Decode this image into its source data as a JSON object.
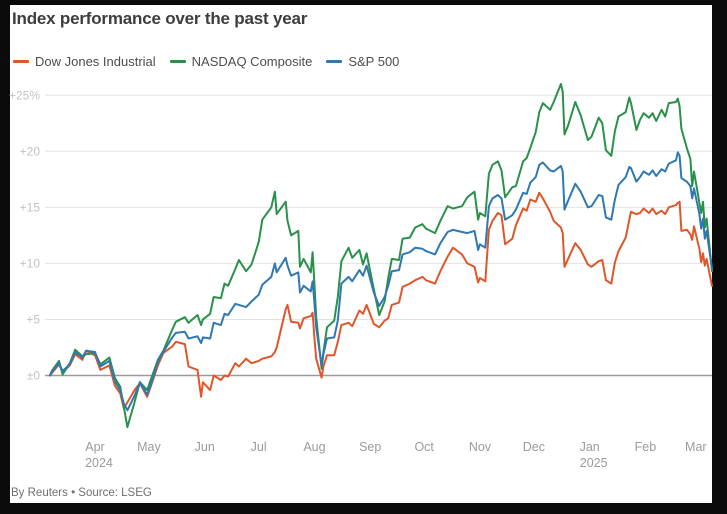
{
  "page": {
    "background": "#0a0a0a",
    "card_background": "#ffffff"
  },
  "footer": {
    "attribution": "By Reuters • Source: LSEG"
  },
  "chart_data": {
    "type": "line",
    "title": "Index performance over the past year",
    "legend_position": "top-left",
    "grid": {
      "grid_on": true,
      "grid_line_color": "#e3e3e3",
      "zero_line_color": "#9a9a9a",
      "y_label_color": "#c2c2c2",
      "x_label_color": "#9b9b9b"
    },
    "ylim": [
      -6,
      27
    ],
    "y_ticks": [
      {
        "value": 25,
        "label": "+25%"
      },
      {
        "value": 20,
        "label": "+20"
      },
      {
        "value": 15,
        "label": "+15"
      },
      {
        "value": 10,
        "label": "+10"
      },
      {
        "value": 5,
        "label": "+5"
      },
      {
        "value": 0,
        "label": "±0"
      }
    ],
    "x_range": [
      "2024-03-07",
      "2025-03-10"
    ],
    "x_ticks": [
      {
        "date": "2024-04-01",
        "label": "Apr",
        "sub": "2024"
      },
      {
        "date": "2024-05-01",
        "label": "May"
      },
      {
        "date": "2024-06-01",
        "label": "Jun"
      },
      {
        "date": "2024-07-01",
        "label": "Jul"
      },
      {
        "date": "2024-08-01",
        "label": "Aug"
      },
      {
        "date": "2024-09-01",
        "label": "Sep"
      },
      {
        "date": "2024-10-01",
        "label": "Oct"
      },
      {
        "date": "2024-11-01",
        "label": "Nov"
      },
      {
        "date": "2024-12-01",
        "label": "Dec"
      },
      {
        "date": "2025-01-01",
        "label": "Jan",
        "sub": "2025"
      },
      {
        "date": "2025-02-01",
        "label": "Feb"
      },
      {
        "date": "2025-03-01",
        "label": "Mar"
      }
    ],
    "dates": [
      "2024-03-07",
      "2024-03-08",
      "2024-03-12",
      "2024-03-14",
      "2024-03-18",
      "2024-03-21",
      "2024-03-25",
      "2024-03-27",
      "2024-04-01",
      "2024-04-04",
      "2024-04-09",
      "2024-04-12",
      "2024-04-15",
      "2024-04-17",
      "2024-04-19",
      "2024-04-23",
      "2024-04-26",
      "2024-04-30",
      "2024-05-02",
      "2024-05-06",
      "2024-05-09",
      "2024-05-14",
      "2024-05-16",
      "2024-05-21",
      "2024-05-23",
      "2024-05-28",
      "2024-05-30",
      "2024-05-31",
      "2024-06-04",
      "2024-06-06",
      "2024-06-10",
      "2024-06-12",
      "2024-06-14",
      "2024-06-18",
      "2024-06-20",
      "2024-06-24",
      "2024-06-27",
      "2024-07-01",
      "2024-07-03",
      "2024-07-08",
      "2024-07-10",
      "2024-07-11",
      "2024-07-16",
      "2024-07-17",
      "2024-07-19",
      "2024-07-23",
      "2024-07-24",
      "2024-07-26",
      "2024-07-30",
      "2024-07-31",
      "2024-08-01",
      "2024-08-02",
      "2024-08-05",
      "2024-08-06",
      "2024-08-08",
      "2024-08-12",
      "2024-08-14",
      "2024-08-16",
      "2024-08-20",
      "2024-08-22",
      "2024-08-26",
      "2024-08-28",
      "2024-08-30",
      "2024-09-03",
      "2024-09-06",
      "2024-09-09",
      "2024-09-11",
      "2024-09-13",
      "2024-09-17",
      "2024-09-19",
      "2024-09-23",
      "2024-09-26",
      "2024-09-30",
      "2024-10-02",
      "2024-10-07",
      "2024-10-10",
      "2024-10-14",
      "2024-10-17",
      "2024-10-22",
      "2024-10-25",
      "2024-10-29",
      "2024-10-31",
      "2024-11-01",
      "2024-11-04",
      "2024-11-06",
      "2024-11-08",
      "2024-11-11",
      "2024-11-13",
      "2024-11-15",
      "2024-11-19",
      "2024-11-21",
      "2024-11-25",
      "2024-11-27",
      "2024-11-29",
      "2024-12-02",
      "2024-12-04",
      "2024-12-06",
      "2024-12-10",
      "2024-12-12",
      "2024-12-16",
      "2024-12-17",
      "2024-12-18",
      "2024-12-20",
      "2024-12-24",
      "2024-12-27",
      "2024-12-31",
      "2025-01-02",
      "2025-01-06",
      "2025-01-08",
      "2025-01-10",
      "2025-01-13",
      "2025-01-15",
      "2025-01-17",
      "2025-01-21",
      "2025-01-23",
      "2025-01-24",
      "2025-01-27",
      "2025-01-29",
      "2025-01-31",
      "2025-02-03",
      "2025-02-05",
      "2025-02-07",
      "2025-02-10",
      "2025-02-12",
      "2025-02-14",
      "2025-02-18",
      "2025-02-19",
      "2025-02-20",
      "2025-02-21",
      "2025-02-24",
      "2025-02-26",
      "2025-02-27",
      "2025-02-28",
      "2025-03-03",
      "2025-03-04",
      "2025-03-05",
      "2025-03-06",
      "2025-03-07",
      "2025-03-10"
    ],
    "series": [
      {
        "name": "Dow Jones Industrial",
        "color": "#e0562b",
        "values": [
          0.0,
          0.2,
          1.0,
          0.3,
          0.9,
          1.9,
          1.4,
          2.2,
          1.8,
          0.5,
          0.9,
          -0.9,
          -1.6,
          -2.9,
          -2.4,
          -1.3,
          -0.7,
          -1.9,
          -1.0,
          0.9,
          2.0,
          2.6,
          3.0,
          2.8,
          0.8,
          0.5,
          -1.9,
          -0.6,
          -1.3,
          0.0,
          -0.4,
          0.0,
          -0.1,
          1.1,
          0.8,
          1.5,
          1.1,
          1.3,
          1.5,
          1.7,
          2.1,
          2.5,
          5.9,
          6.3,
          4.8,
          4.7,
          4.2,
          5.1,
          5.3,
          5.6,
          3.4,
          1.5,
          -0.2,
          0.8,
          1.8,
          1.8,
          3.0,
          4.5,
          4.7,
          4.4,
          5.8,
          5.5,
          6.3,
          4.6,
          4.3,
          4.9,
          5.1,
          6.3,
          6.5,
          7.9,
          8.2,
          8.5,
          8.8,
          8.5,
          8.2,
          9.3,
          10.6,
          11.4,
          10.8,
          10.0,
          9.7,
          8.3,
          8.7,
          8.4,
          13.0,
          13.8,
          14.5,
          14.3,
          11.7,
          12.2,
          13.4,
          14.9,
          14.7,
          15.7,
          15.5,
          16.3,
          15.8,
          14.6,
          13.8,
          13.2,
          12.7,
          9.7,
          10.4,
          11.8,
          11.2,
          9.9,
          9.7,
          10.2,
          10.3,
          8.5,
          8.2,
          10.1,
          11.1,
          12.3,
          13.9,
          14.6,
          14.4,
          14.5,
          14.9,
          14.5,
          14.9,
          14.4,
          14.7,
          14.4,
          15.0,
          15.2,
          15.4,
          15.5,
          12.9,
          13.0,
          12.6,
          12.1,
          13.3,
          11.3,
          10.1,
          10.9,
          9.8,
          10.4,
          8.0
        ]
      },
      {
        "name": "NASDAQ Composite",
        "color": "#2a914a",
        "values": [
          0.0,
          0.4,
          1.3,
          0.1,
          1.1,
          2.3,
          1.7,
          1.9,
          2.0,
          1.0,
          1.6,
          -0.2,
          -1.0,
          -2.8,
          -4.6,
          -2.4,
          -0.6,
          -1.3,
          -0.4,
          1.4,
          2.2,
          4.1,
          4.8,
          5.2,
          4.7,
          5.4,
          4.5,
          5.0,
          5.5,
          7.0,
          6.9,
          8.2,
          8.0,
          9.5,
          10.3,
          9.3,
          9.9,
          11.9,
          13.9,
          15.0,
          16.4,
          14.4,
          15.5,
          13.8,
          12.5,
          12.9,
          9.7,
          10.4,
          9.2,
          11.0,
          8.2,
          5.2,
          0.6,
          2.1,
          4.3,
          4.9,
          7.0,
          10.2,
          11.4,
          10.5,
          11.2,
          9.9,
          10.9,
          7.7,
          5.4,
          6.6,
          8.7,
          10.4,
          10.3,
          12.2,
          12.3,
          13.2,
          13.5,
          13.1,
          12.7,
          13.8,
          15.1,
          14.9,
          15.1,
          15.9,
          16.4,
          13.9,
          14.5,
          14.2,
          18.0,
          18.8,
          19.1,
          18.3,
          15.9,
          16.8,
          16.9,
          19.1,
          19.4,
          20.3,
          21.7,
          23.5,
          24.3,
          23.7,
          24.4,
          26.0,
          25.3,
          21.5,
          22.3,
          24.4,
          23.2,
          21.0,
          21.3,
          23.0,
          22.5,
          20.1,
          19.6,
          21.8,
          23.1,
          23.5,
          24.8,
          24.3,
          21.9,
          22.8,
          23.4,
          23.0,
          23.4,
          22.7,
          23.7,
          23.1,
          24.3,
          24.4,
          24.7,
          24.0,
          22.0,
          20.3,
          19.3,
          16.9,
          18.2,
          15.4,
          14.5,
          15.5,
          13.2,
          14.0,
          9.3
        ]
      },
      {
        "name": "S&P 500",
        "color": "#2f78b2",
        "values": [
          0.0,
          0.3,
          1.1,
          0.4,
          1.0,
          2.1,
          1.6,
          2.2,
          2.1,
          0.8,
          1.3,
          -0.5,
          -1.3,
          -2.5,
          -3.1,
          -1.8,
          -0.6,
          -1.7,
          -0.9,
          1.2,
          2.1,
          3.4,
          3.8,
          3.9,
          3.3,
          3.5,
          2.9,
          3.4,
          3.3,
          4.7,
          4.5,
          5.5,
          5.4,
          6.4,
          6.3,
          6.1,
          6.6,
          7.2,
          8.1,
          8.8,
          10.0,
          9.2,
          10.5,
          9.8,
          8.9,
          9.2,
          7.4,
          8.0,
          7.5,
          8.4,
          6.5,
          4.3,
          0.9,
          1.9,
          3.3,
          3.4,
          4.9,
          8.2,
          8.8,
          8.4,
          9.4,
          8.9,
          9.8,
          7.4,
          6.2,
          7.0,
          8.0,
          9.3,
          9.4,
          10.8,
          11.0,
          11.4,
          11.3,
          11.1,
          10.8,
          11.8,
          12.8,
          13.0,
          12.8,
          12.7,
          12.9,
          11.2,
          11.7,
          11.4,
          15.1,
          15.8,
          16.1,
          15.8,
          13.9,
          14.3,
          14.8,
          16.3,
          16.2,
          17.2,
          17.7,
          18.8,
          19.0,
          18.3,
          18.2,
          18.7,
          18.2,
          14.8,
          15.6,
          17.1,
          16.4,
          15.0,
          15.1,
          16.1,
          16.0,
          14.1,
          13.9,
          15.7,
          17.0,
          17.7,
          18.6,
          18.5,
          17.3,
          17.7,
          18.2,
          17.9,
          18.3,
          17.8,
          18.4,
          18.2,
          18.9,
          19.2,
          19.9,
          19.6,
          17.6,
          17.3,
          16.9,
          15.8,
          16.7,
          14.4,
          13.1,
          14.0,
          12.2,
          12.9,
          9.5
        ]
      }
    ]
  }
}
